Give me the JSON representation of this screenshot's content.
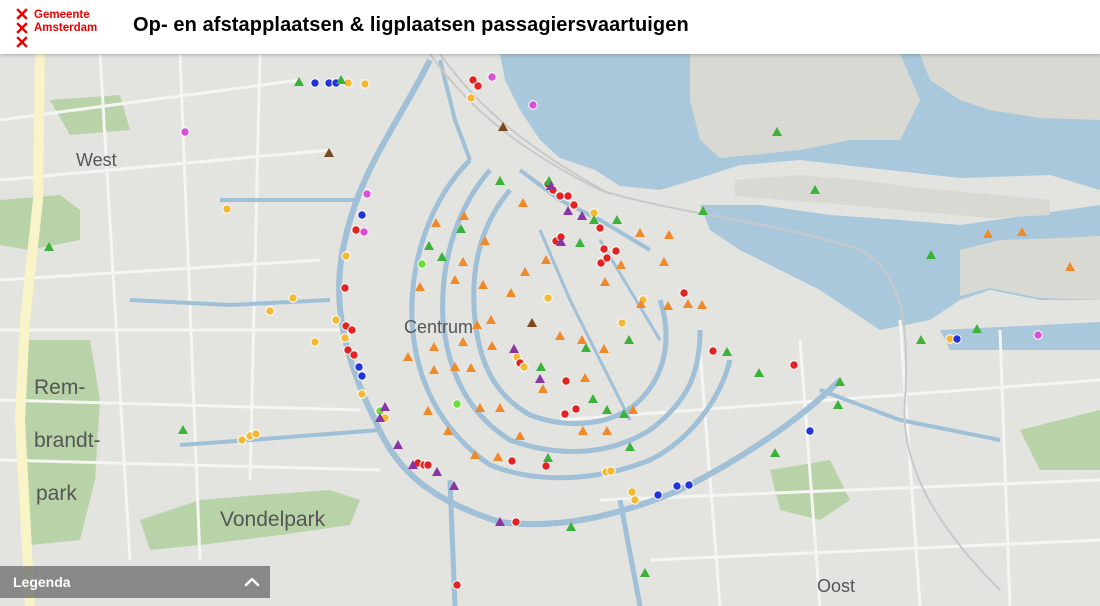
{
  "header": {
    "logo_line1": "Gemeente",
    "logo_line2": "Amsterdam",
    "title": "Op- en afstapplaatsen & ligplaatsen passagiersvaartuigen"
  },
  "map": {
    "labels": {
      "west": "West",
      "centrum": "Centrum",
      "rembrandt1": "Rem-",
      "rembrandt2": "brandt-",
      "rembrandt3": "park",
      "vondelpark": "Vondelpark",
      "oost": "Oost"
    },
    "colors": {
      "water": "#aac8dc",
      "land": "#e3e3e0",
      "park": "#b9d3a8",
      "canal": "#9fc0d6",
      "road": "#ffffff",
      "red": "#e32222",
      "orange_triangle": "#f0892a",
      "green_triangle": "#3bb33b",
      "blue": "#2233dd",
      "yellow": "#f4b934",
      "magenta": "#d84fd8",
      "purple_triangle": "#8b34a3",
      "brown_triangle": "#7a4a1c",
      "lime": "#6bdc3b"
    },
    "icon_names": {
      "circle": "circle-marker-icon",
      "triangle": "triangle-marker-icon"
    }
  },
  "legend": {
    "label": "Legenda",
    "toggle_icon": "chevron-up-icon"
  }
}
